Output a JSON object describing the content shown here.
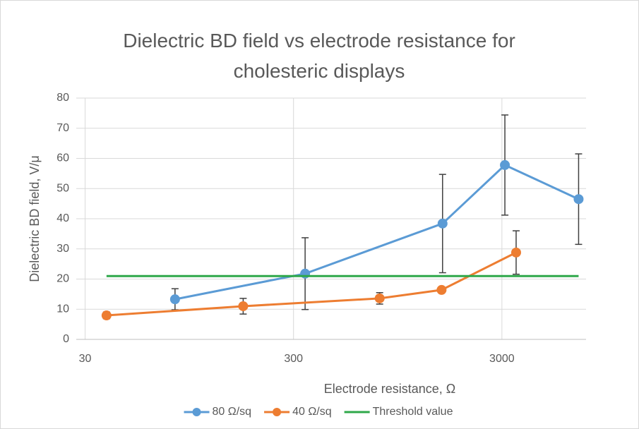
{
  "chart_data": {
    "type": "scatter",
    "title": "Dielectric BD field vs electrode resistance for cholesteric displays",
    "x_label": "Electrode resistance, Ω",
    "y_label": "Dielectric BD field, V/μ",
    "xscale": "log",
    "xlim": [
      27.2,
      7600
    ],
    "xticks": [
      30,
      300,
      3000
    ],
    "ylim": [
      0,
      80
    ],
    "yticks": [
      0,
      10,
      20,
      30,
      40,
      50,
      60,
      70,
      80
    ],
    "grid": true,
    "legend": "bottom",
    "series": [
      {
        "name": "80 Ω/sq",
        "color": "#5b9bd5",
        "marker": true,
        "x": [
          81,
          341,
          1557,
          3100,
          7000
        ],
        "values": [
          13.3,
          21.8,
          38.4,
          57.8,
          46.5
        ],
        "errors": [
          3.5,
          11.9,
          16.3,
          16.6,
          15
        ]
      },
      {
        "name": "40 Ω/sq",
        "color": "#ed7d31",
        "marker": true,
        "x": [
          38,
          172,
          777,
          1540,
          3510
        ],
        "values": [
          7.95,
          11.0,
          13.6,
          16.4,
          28.8
        ],
        "errors": [
          1.1,
          2.6,
          1.9,
          0.8,
          7.2
        ]
      },
      {
        "name": "Threshold value",
        "color": "#2fa84a",
        "marker": false,
        "x": [
          38,
          7000
        ],
        "values": [
          21,
          21
        ]
      }
    ]
  }
}
